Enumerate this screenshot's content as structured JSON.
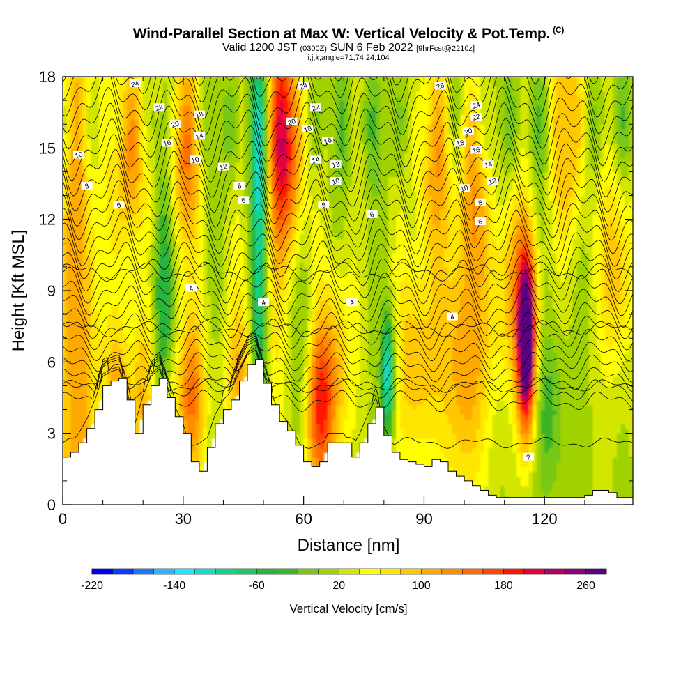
{
  "header": {
    "title": "Wind-Parallel Section at Max W: Vertical Velocity & Pot.Temp.",
    "copyright": "(C)",
    "valid_main": "Valid 1200 JST",
    "valid_utc": "(0300Z)",
    "valid_date": "SUN 6 Feb 2022",
    "forecast": "[9hrFcst@2210z]",
    "section_info": "i,j,k,angle=71,74,24,104"
  },
  "chart_data": {
    "type": "heatmap",
    "xlabel": "Distance [nm]",
    "ylabel": "Height [Kft MSL]",
    "xlim": [
      0,
      142
    ],
    "ylim": [
      0,
      18
    ],
    "x_ticks": [
      0,
      30,
      60,
      90,
      120
    ],
    "y_ticks": [
      0,
      3,
      6,
      9,
      12,
      15,
      18
    ],
    "colorbar": {
      "title": "Vertical Velocity [cm/s]",
      "min": -220,
      "max": 280,
      "step": 20,
      "tick_labels": [
        "-220",
        "-140",
        "-60",
        "20",
        "100",
        "180",
        "260"
      ],
      "tick_values": [
        -220,
        -140,
        -60,
        20,
        100,
        180,
        260
      ],
      "colors": [
        "#0000ff",
        "#0a3cff",
        "#1e78ff",
        "#28b4ff",
        "#1ee6ff",
        "#14dcc8",
        "#14d28c",
        "#1ec864",
        "#28b43c",
        "#3cb428",
        "#78c814",
        "#a0d200",
        "#d2e600",
        "#ffff00",
        "#ffe600",
        "#ffc800",
        "#ffaa00",
        "#ff8c00",
        "#ff6e00",
        "#ff4600",
        "#ff1400",
        "#e6003c",
        "#b40064",
        "#8c0078",
        "#5a0082"
      ]
    },
    "terrain_x": [
      0,
      2,
      4,
      6,
      8,
      10,
      12,
      14,
      16,
      18,
      20,
      22,
      24,
      26,
      28,
      30,
      32,
      34,
      36,
      38,
      40,
      42,
      44,
      46,
      48,
      50,
      52,
      54,
      56,
      58,
      60,
      62,
      64,
      66,
      68,
      70,
      72,
      74,
      76,
      78,
      80,
      82,
      84,
      86,
      88,
      90,
      92,
      94,
      96,
      98,
      100,
      102,
      104,
      106,
      108,
      110,
      112,
      114,
      116,
      118,
      120,
      122,
      124,
      126,
      128,
      130,
      132,
      134,
      136,
      138,
      140,
      142
    ],
    "terrain_y": [
      2.0,
      2.2,
      2.6,
      3.2,
      4.0,
      5.0,
      5.2,
      5.3,
      4.4,
      3.0,
      4.2,
      5.0,
      5.3,
      4.5,
      3.7,
      3.0,
      1.8,
      1.4,
      2.4,
      3.4,
      4.0,
      4.4,
      5.2,
      5.9,
      6.1,
      5.1,
      4.2,
      3.5,
      3.1,
      2.5,
      1.8,
      1.6,
      1.8,
      2.6,
      2.6,
      2.6,
      2.0,
      2.6,
      3.4,
      4.1,
      2.9,
      2.2,
      1.9,
      1.8,
      1.7,
      1.6,
      1.9,
      1.8,
      1.4,
      1.2,
      1.0,
      0.8,
      0.6,
      0.4,
      0.3,
      0.3,
      0.3,
      0.3,
      0.3,
      0.3,
      0.3,
      0.3,
      0.3,
      0.3,
      0.3,
      0.4,
      0.6,
      0.6,
      0.5,
      0.3,
      0.3,
      0.3
    ],
    "w_field_note": "vertical velocity in cm/s; dominant maximum near x=115 nm, 6-7 kft",
    "theta_contour_labels": [
      {
        "x": 18,
        "y": 17.7,
        "text": "24"
      },
      {
        "x": 24,
        "y": 16.7,
        "text": "22"
      },
      {
        "x": 28,
        "y": 16.0,
        "text": "20"
      },
      {
        "x": 34,
        "y": 16.4,
        "text": "18"
      },
      {
        "x": 26,
        "y": 15.2,
        "text": "16"
      },
      {
        "x": 34,
        "y": 15.5,
        "text": "14"
      },
      {
        "x": 33,
        "y": 14.5,
        "text": "10"
      },
      {
        "x": 40,
        "y": 14.2,
        "text": "12"
      },
      {
        "x": 44,
        "y": 13.4,
        "text": "8"
      },
      {
        "x": 45,
        "y": 12.8,
        "text": "6"
      },
      {
        "x": 4,
        "y": 14.7,
        "text": "10"
      },
      {
        "x": 6,
        "y": 13.4,
        "text": "8"
      },
      {
        "x": 14,
        "y": 12.6,
        "text": "6"
      },
      {
        "x": 60,
        "y": 17.6,
        "text": "24"
      },
      {
        "x": 63,
        "y": 16.7,
        "text": "22"
      },
      {
        "x": 57,
        "y": 16.1,
        "text": "20"
      },
      {
        "x": 61,
        "y": 15.8,
        "text": "18"
      },
      {
        "x": 66,
        "y": 15.3,
        "text": "16"
      },
      {
        "x": 63,
        "y": 14.5,
        "text": "14"
      },
      {
        "x": 68,
        "y": 14.3,
        "text": "12"
      },
      {
        "x": 68,
        "y": 13.6,
        "text": "10"
      },
      {
        "x": 65,
        "y": 12.6,
        "text": "8"
      },
      {
        "x": 77,
        "y": 12.2,
        "text": "6"
      },
      {
        "x": 94,
        "y": 17.6,
        "text": "26"
      },
      {
        "x": 103,
        "y": 16.8,
        "text": "24"
      },
      {
        "x": 103,
        "y": 16.3,
        "text": "22"
      },
      {
        "x": 101,
        "y": 15.7,
        "text": "20"
      },
      {
        "x": 99,
        "y": 15.2,
        "text": "18"
      },
      {
        "x": 103,
        "y": 14.9,
        "text": "16"
      },
      {
        "x": 106,
        "y": 14.3,
        "text": "14"
      },
      {
        "x": 107,
        "y": 13.6,
        "text": "12"
      },
      {
        "x": 100,
        "y": 13.3,
        "text": "10"
      },
      {
        "x": 104,
        "y": 12.7,
        "text": "8"
      },
      {
        "x": 104,
        "y": 11.9,
        "text": "6"
      },
      {
        "x": 32,
        "y": 9.1,
        "text": "4"
      },
      {
        "x": 50,
        "y": 8.5,
        "text": "4"
      },
      {
        "x": 72,
        "y": 8.5,
        "text": "4"
      },
      {
        "x": 97,
        "y": 7.9,
        "text": "4"
      },
      {
        "x": 116,
        "y": 2.0,
        "text": "2"
      }
    ]
  }
}
